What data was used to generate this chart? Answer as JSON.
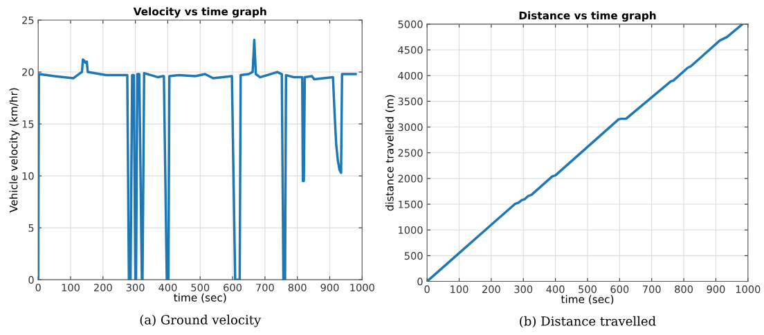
{
  "chart_data": [
    {
      "type": "line",
      "title": "Velocity vs time graph",
      "xlabel": "time (sec)",
      "ylabel": "Vehicle velocity (km/hr)",
      "xlim": [
        0,
        1000
      ],
      "ylim": [
        0,
        25
      ],
      "xticks": [
        0,
        100,
        200,
        300,
        400,
        500,
        600,
        700,
        800,
        900,
        1000
      ],
      "yticks": [
        0,
        5,
        10,
        15,
        20,
        25
      ],
      "grid": true,
      "annotations": [
        "(a) Ground velocity"
      ],
      "series": [
        {
          "color": "#1f77b4",
          "x": [
            0,
            2,
            50,
            108,
            130,
            135,
            138,
            142,
            145,
            150,
            153,
            210,
            275,
            280,
            285,
            290,
            295,
            300,
            302,
            306,
            312,
            320,
            322,
            327,
            370,
            385,
            388,
            397,
            402,
            405,
            435,
            485,
            515,
            540,
            598,
            608,
            622,
            625,
            650,
            662,
            667,
            672,
            685,
            738,
            752,
            757,
            762,
            765,
            790,
            815,
            817,
            820,
            823,
            845,
            852,
            910,
            915,
            920,
            925,
            930,
            935,
            938,
            980
          ],
          "values": [
            0,
            19.8,
            19.6,
            19.4,
            19.9,
            20,
            21.2,
            21.1,
            20.9,
            21,
            20,
            19.7,
            19.7,
            0,
            0,
            19.7,
            19.7,
            0,
            0,
            19.8,
            19.8,
            0,
            0,
            19.9,
            19.5,
            19.6,
            19.6,
            0,
            0,
            19.6,
            19.7,
            19.6,
            19.8,
            19.4,
            19.6,
            0,
            0,
            19.7,
            19.8,
            20,
            23.1,
            19.8,
            19.5,
            20,
            19.8,
            0,
            0,
            19.7,
            19.5,
            19.5,
            9.5,
            9.5,
            19.5,
            19.6,
            19.3,
            19.5,
            16,
            13,
            11.5,
            10.6,
            10.3,
            19.8,
            19.8
          ]
        }
      ]
    },
    {
      "type": "line",
      "title": "Distance vs time graph",
      "xlabel": "time (sec)",
      "ylabel": "distance travelled (m)",
      "xlim": [
        0,
        1000
      ],
      "ylim": [
        0,
        5000
      ],
      "xticks": [
        0,
        100,
        200,
        300,
        400,
        500,
        600,
        700,
        800,
        900,
        1000
      ],
      "yticks": [
        0,
        500,
        1000,
        1500,
        2000,
        2500,
        3000,
        3500,
        4000,
        4500,
        5000
      ],
      "grid": true,
      "annotations": [
        "(b) Distance travelled"
      ],
      "series": [
        {
          "color": "#1f77b4",
          "x": [
            0,
            100,
            200,
            275,
            285,
            295,
            305,
            315,
            325,
            390,
            400,
            597,
            605,
            620,
            760,
            767,
            812,
            822,
            912,
            925,
            935,
            983
          ],
          "values": [
            0,
            550,
            1100,
            1510,
            1530,
            1580,
            1600,
            1660,
            1680,
            2040,
            2060,
            3150,
            3160,
            3160,
            3890,
            3900,
            4150,
            4180,
            4680,
            4720,
            4750,
            5000
          ]
        }
      ]
    }
  ]
}
